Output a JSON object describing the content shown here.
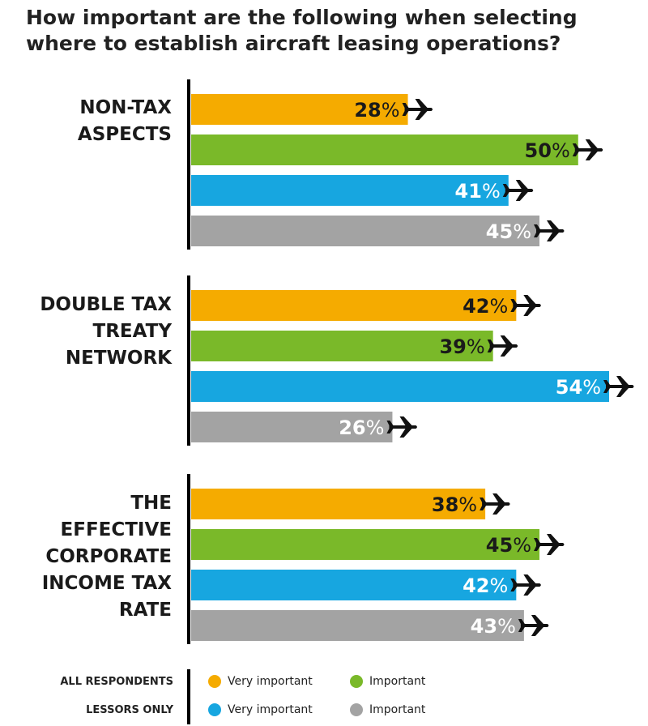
{
  "title_lines": [
    "How important are the following when selecting",
    "where to establish aircraft leasing operations?"
  ],
  "chart_data": {
    "type": "bar",
    "orientation": "horizontal",
    "title": "How important are the following when selecting where to establish aircraft leasing operations?",
    "unit": "%",
    "xlim": [
      0,
      54
    ],
    "categories": [
      {
        "name": "NON-TAX ASPECTS",
        "label_lines": [
          "NON-TAX",
          "ASPECTS"
        ]
      },
      {
        "name": "DOUBLE TAX TREATY NETWORK",
        "label_lines": [
          "DOUBLE TAX",
          "TREATY",
          "NETWORK"
        ]
      },
      {
        "name": "THE EFFECTIVE CORPORATE INCOME TAX RATE",
        "label_lines": [
          "THE",
          "EFFECTIVE",
          "CORPORATE",
          "INCOME TAX",
          "RATE"
        ]
      }
    ],
    "series": [
      {
        "name": "All respondents - Very important",
        "color": "#F5AB00",
        "label_color": "#1a1a1a",
        "values": [
          28,
          42,
          38
        ]
      },
      {
        "name": "All respondents - Important",
        "color": "#7AB929",
        "label_color": "#1a1a1a",
        "values": [
          50,
          39,
          45
        ]
      },
      {
        "name": "Lessors only - Very important",
        "color": "#17A6E0",
        "label_color": "#ffffff",
        "values": [
          41,
          54,
          42
        ]
      },
      {
        "name": "Lessors only - Important",
        "color": "#A3A3A3",
        "label_color": "#ffffff",
        "values": [
          45,
          26,
          43
        ]
      }
    ],
    "legend": {
      "rows": [
        {
          "label": "ALL RESPONDENTS",
          "items": [
            {
              "text": "Very important",
              "color": "#F5AB00"
            },
            {
              "text": "Important",
              "color": "#7AB929"
            }
          ]
        },
        {
          "label": "LESSORS ONLY",
          "items": [
            {
              "text": "Very important",
              "color": "#17A6E0"
            },
            {
              "text": "Important",
              "color": "#A3A3A3"
            }
          ]
        }
      ]
    },
    "icon": "airplane-icon"
  }
}
